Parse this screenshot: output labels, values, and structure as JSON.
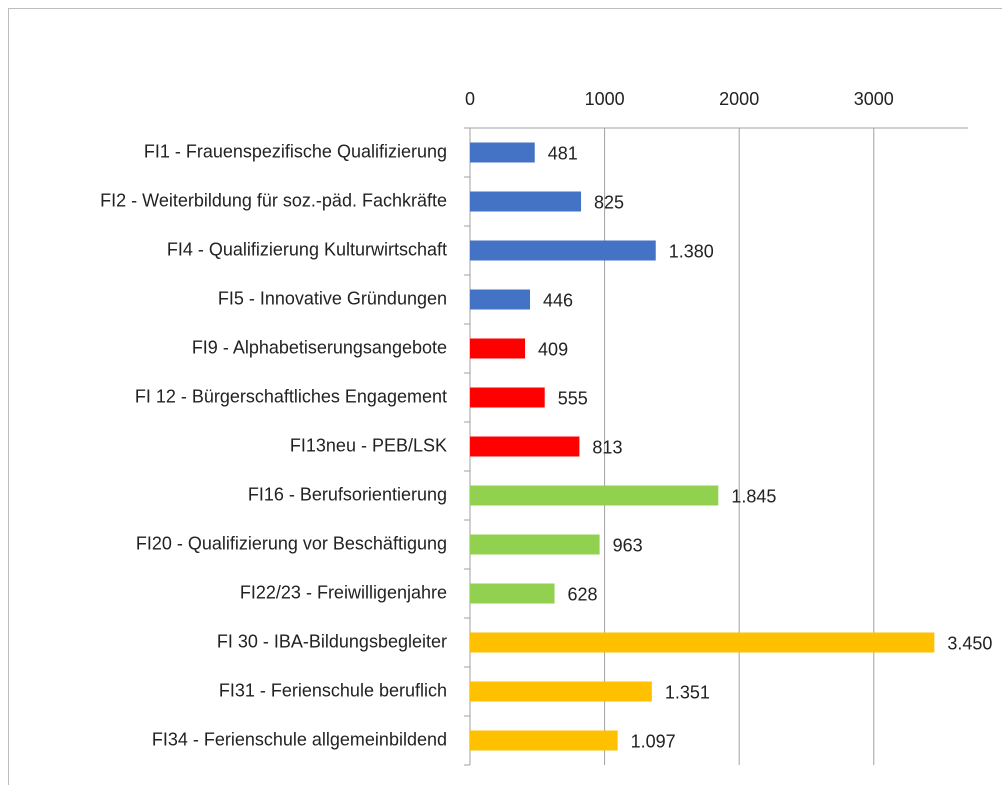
{
  "chart_data": {
    "type": "bar",
    "orientation": "horizontal",
    "categories": [
      "FI1 - Frauenspezifische Qualifizierung",
      "FI2 - Weiterbildung für soz.-päd. Fachkräfte",
      "FI4 - Qualifizierung Kulturwirtschaft",
      "FI5 - Innovative Gründungen",
      "FI9 - Alphabetiserungsangebote",
      "FI 12 - Bürgerschaftliches Engagement",
      "FI13neu - PEB/LSK",
      "FI16 - Berufsorientierung",
      "FI20 - Qualifizierung vor Beschäftigung",
      "FI22/23 - Freiwilligenjahre",
      "FI 30 - IBA-Bildungsbegleiter",
      "FI31 - Ferienschule beruflich",
      "FI34 - Ferienschule allgemeinbildend"
    ],
    "values": [
      481,
      825,
      1380,
      446,
      409,
      555,
      813,
      1845,
      963,
      628,
      3450,
      1351,
      1097
    ],
    "value_labels": [
      "481",
      "825",
      "1.380",
      "446",
      "409",
      "555",
      "813",
      "1.845",
      "963",
      "628",
      "3.450",
      "1.351",
      "1.097"
    ],
    "colors": [
      "#4472c4",
      "#4472c4",
      "#4472c4",
      "#4472c4",
      "#ff0000",
      "#ff0000",
      "#ff0000",
      "#92d050",
      "#92d050",
      "#92d050",
      "#ffc000",
      "#ffc000",
      "#ffc000"
    ],
    "xlim": [
      0,
      3700
    ],
    "xticks": [
      0,
      1000,
      2000,
      3000
    ],
    "grid": true
  }
}
